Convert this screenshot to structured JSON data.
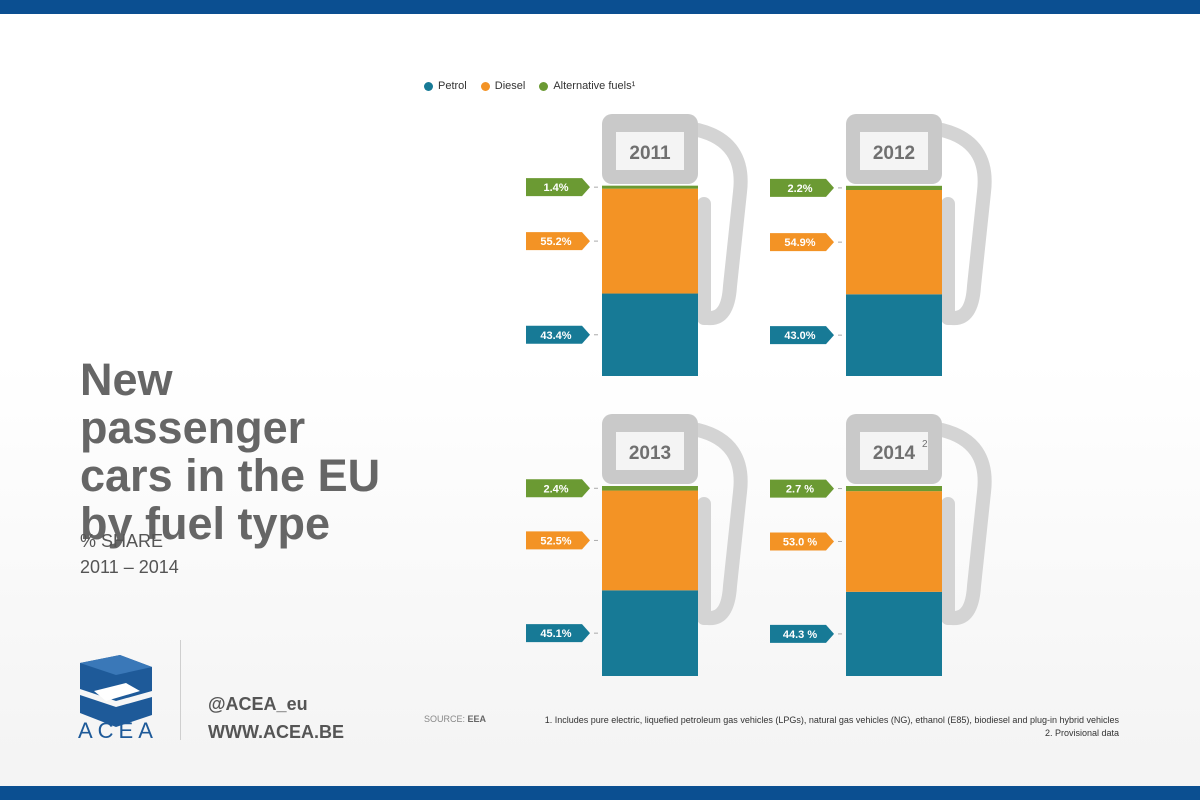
{
  "legend": [
    {
      "label": "Petrol",
      "color": "#177a96"
    },
    {
      "label": "Diesel",
      "color": "#f39325"
    },
    {
      "label": "Alternative fuels¹",
      "color": "#6b9a33"
    }
  ],
  "title": "New passenger cars in the EU by fuel type",
  "subtitle_line1": "% SHARE",
  "subtitle_line2": "2011 – 2014",
  "brand": {
    "name": "ACEA",
    "handle": "@ACEA_eu",
    "website": "WWW.ACEA.BE",
    "color": "#1e5a99"
  },
  "source_label": "SOURCE:",
  "source_value": "EEA",
  "notes": [
    "1. Includes pure electric, liquefied petroleum gas vehicles (LPGs), natural gas vehicles (NG), ethanol (E85), biodiesel and plug-in hybrid vehicles",
    "2. Provisional data"
  ],
  "chart_data": {
    "type": "bar",
    "stacked": true,
    "categories": [
      "2011",
      "2012",
      "2013",
      "2014"
    ],
    "category_superscripts": [
      "",
      "",
      "",
      "2"
    ],
    "unit": "%",
    "series": [
      {
        "name": "Petrol",
        "color": "#177a96",
        "values": [
          43.4,
          43.0,
          45.1,
          44.3
        ],
        "labels": [
          "43.4%",
          "43.0%",
          "45.1%",
          "44.3 %"
        ]
      },
      {
        "name": "Diesel",
        "color": "#f39325",
        "values": [
          55.2,
          54.9,
          52.5,
          53.0
        ],
        "labels": [
          "55.2%",
          "54.9%",
          "52.5%",
          "53.0 %"
        ]
      },
      {
        "name": "Alternative fuels¹",
        "color": "#6b9a33",
        "values": [
          1.4,
          2.2,
          2.4,
          2.7
        ],
        "labels": [
          "1.4%",
          "2.2%",
          "2.4%",
          "2.7 %"
        ]
      }
    ],
    "ylim": [
      0,
      100
    ]
  }
}
